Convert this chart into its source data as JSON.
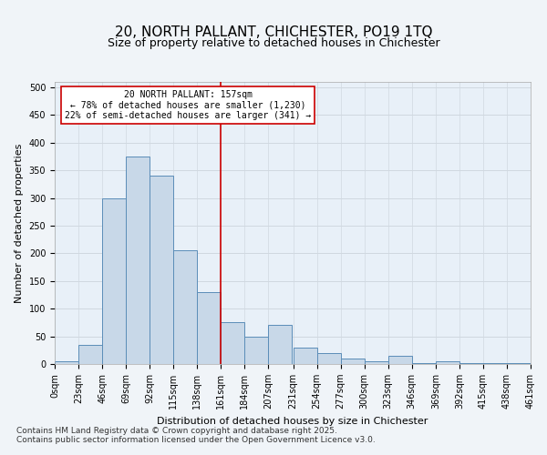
{
  "title": "20, NORTH PALLANT, CHICHESTER, PO19 1TQ",
  "subtitle": "Size of property relative to detached houses in Chichester",
  "xlabel": "Distribution of detached houses by size in Chichester",
  "ylabel": "Number of detached properties",
  "bar_color": "#c8d8e8",
  "bar_edge_color": "#5b8db8",
  "bar_heights": [
    5,
    35,
    300,
    375,
    340,
    205,
    130,
    75,
    50,
    70,
    30,
    20,
    10,
    5,
    15,
    2,
    5,
    2,
    2,
    2
  ],
  "bin_edges": [
    0,
    23,
    46,
    69,
    92,
    115,
    138,
    161,
    184,
    207,
    231,
    254,
    277,
    300,
    323,
    346,
    369,
    392,
    415,
    438,
    461
  ],
  "tick_labels": [
    "0sqm",
    "23sqm",
    "46sqm",
    "69sqm",
    "92sqm",
    "115sqm",
    "138sqm",
    "161sqm",
    "184sqm",
    "207sqm",
    "231sqm",
    "254sqm",
    "277sqm",
    "300sqm",
    "323sqm",
    "346sqm",
    "369sqm",
    "392sqm",
    "415sqm",
    "438sqm",
    "461sqm"
  ],
  "property_line_x": 161,
  "property_size": 157,
  "annotation_title": "20 NORTH PALLANT: 157sqm",
  "annotation_line1": "← 78% of detached houses are smaller (1,230)",
  "annotation_line2": "22% of semi-detached houses are larger (341) →",
  "annotation_box_color": "#ffffff",
  "annotation_border_color": "#cc0000",
  "vline_color": "#cc0000",
  "grid_color": "#d0d8e0",
  "bg_color": "#e8f0f8",
  "ylim": [
    0,
    510
  ],
  "yticks": [
    0,
    50,
    100,
    150,
    200,
    250,
    300,
    350,
    400,
    450,
    500
  ],
  "footer_line1": "Contains HM Land Registry data © Crown copyright and database right 2025.",
  "footer_line2": "Contains public sector information licensed under the Open Government Licence v3.0.",
  "title_fontsize": 11,
  "subtitle_fontsize": 9,
  "tick_fontsize": 7,
  "ylabel_fontsize": 8,
  "xlabel_fontsize": 8,
  "footer_fontsize": 6.5
}
